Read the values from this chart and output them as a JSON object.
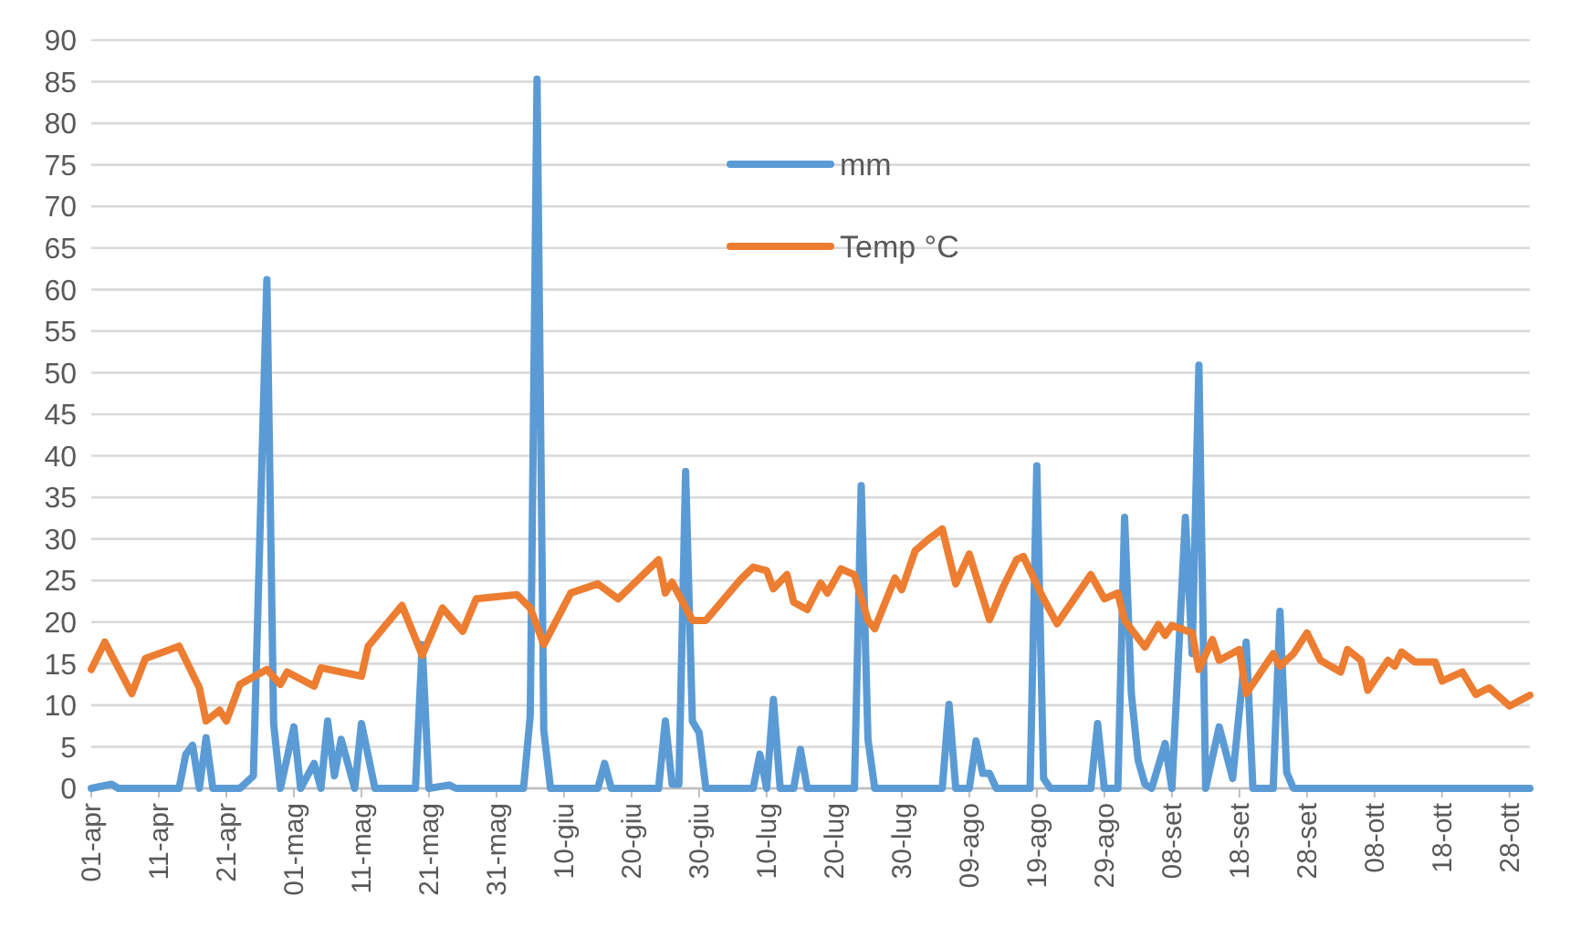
{
  "chart_data": {
    "type": "line",
    "xlim": [
      "--04-01",
      "--10-31"
    ],
    "xticks": [
      {
        "value": "--04-01",
        "label": "01-apr"
      },
      {
        "value": "--04-11",
        "label": "11-apr"
      },
      {
        "value": "--04-21",
        "label": "21-apr"
      },
      {
        "value": "--05-01",
        "label": "01-mag"
      },
      {
        "value": "--05-11",
        "label": "11-mag"
      },
      {
        "value": "--05-21",
        "label": "21-mag"
      },
      {
        "value": "--05-31",
        "label": "31-mag"
      },
      {
        "value": "--06-10",
        "label": "10-giu"
      },
      {
        "value": "--06-20",
        "label": "20-giu"
      },
      {
        "value": "--06-30",
        "label": "30-giu"
      },
      {
        "value": "--07-10",
        "label": "10-lug"
      },
      {
        "value": "--07-20",
        "label": "20-lug"
      },
      {
        "value": "--07-30",
        "label": "30-lug"
      },
      {
        "value": "--08-09",
        "label": "09-ago"
      },
      {
        "value": "--08-19",
        "label": "19-ago"
      },
      {
        "value": "--08-29",
        "label": "29-ago"
      },
      {
        "value": "--09-08",
        "label": "08-set"
      },
      {
        "value": "--09-18",
        "label": "18-set"
      },
      {
        "value": "--09-28",
        "label": "28-set"
      },
      {
        "value": "--10-08",
        "label": "08-ott"
      },
      {
        "value": "--10-18",
        "label": "18-ott"
      },
      {
        "value": "--10-28",
        "label": "28-ott"
      }
    ],
    "ylim": [
      0,
      90
    ],
    "yticks": [
      0,
      5,
      10,
      15,
      20,
      25,
      30,
      35,
      40,
      45,
      50,
      55,
      60,
      65,
      70,
      75,
      80,
      85,
      90
    ],
    "grid": "y",
    "legend": "top",
    "series": [
      {
        "name": "mm",
        "color": "#5b9bd5",
        "x": [
          "--04-01",
          "--04-04",
          "--04-05",
          "--04-14",
          "--04-15",
          "--04-16",
          "--04-17",
          "--04-18",
          "--04-19",
          "--04-23",
          "--04-25",
          "--04-27",
          "--04-28",
          "--04-29",
          "--05-01",
          "--05-02",
          "--05-04",
          "--05-05",
          "--05-06",
          "--05-07",
          "--05-08",
          "--05-10",
          "--05-11",
          "--05-13",
          "--05-19",
          "--05-20",
          "--05-21",
          "--05-24",
          "--05-25",
          "--06-04",
          "--06-05",
          "--06-06",
          "--06-07",
          "--06-08",
          "--06-15",
          "--06-16",
          "--06-17",
          "--06-24",
          "--06-25",
          "--06-26",
          "--06-27",
          "--06-28",
          "--06-29",
          "--06-30",
          "--07-01",
          "--07-08",
          "--07-09",
          "--07-10",
          "--07-11",
          "--07-12",
          "--07-14",
          "--07-15",
          "--07-16",
          "--07-23",
          "--07-24",
          "--07-25",
          "--07-26",
          "--08-05",
          "--08-06",
          "--08-07",
          "--08-09",
          "--08-10",
          "--08-11",
          "--08-12",
          "--08-13",
          "--08-18",
          "--08-19",
          "--08-20",
          "--08-21",
          "--08-27",
          "--08-28",
          "--08-29",
          "--08-31",
          "--09-01",
          "--09-02",
          "--09-03",
          "--09-04",
          "--09-05",
          "--09-07",
          "--09-08",
          "--09-10",
          "--09-11",
          "--09-12",
          "--09-13",
          "--09-15",
          "--09-17",
          "--09-19",
          "--09-20",
          "--09-23",
          "--09-24",
          "--09-25",
          "--09-26",
          "--10-31"
        ],
        "values": [
          0,
          0.5,
          0,
          0,
          4.1,
          5.2,
          0,
          6.1,
          0,
          0,
          1.5,
          61.2,
          7.8,
          0,
          7.4,
          0,
          3,
          0,
          8.1,
          1.5,
          5.9,
          0,
          7.8,
          0,
          0,
          17.3,
          0,
          0.4,
          0,
          0,
          8.8,
          85.3,
          7,
          0,
          0,
          3,
          0,
          0,
          8.1,
          0.5,
          0.5,
          38.1,
          8.1,
          6.7,
          0,
          0,
          4.1,
          0,
          10.7,
          0,
          0,
          4.7,
          0,
          0,
          36.4,
          5.9,
          0,
          0,
          10.1,
          0,
          0,
          5.7,
          1.8,
          1.8,
          0,
          0,
          38.8,
          1.2,
          0,
          0,
          7.8,
          0,
          0,
          32.6,
          11.4,
          3.4,
          0.5,
          0,
          5.4,
          0,
          32.6,
          16.2,
          50.9,
          0,
          7.4,
          1.2,
          17.6,
          0,
          0,
          21.3,
          1.9,
          0,
          0
        ]
      },
      {
        "name": "Temp °C",
        "color": "#ed7d31",
        "x": [
          "--04-01",
          "--04-03",
          "--04-07",
          "--04-09",
          "--04-14",
          "--04-17",
          "--04-18",
          "--04-20",
          "--04-21",
          "--04-23",
          "--04-27",
          "--04-29",
          "--04-30",
          "--05-04",
          "--05-05",
          "--05-11",
          "--05-12",
          "--05-17",
          "--05-20",
          "--05-23",
          "--05-26",
          "--05-28",
          "--06-03",
          "--06-05",
          "--06-07",
          "--06-11",
          "--06-15",
          "--06-18",
          "--06-24",
          "--06-25",
          "--06-26",
          "--06-29",
          "--07-01",
          "--07-06",
          "--07-08",
          "--07-10",
          "--07-11",
          "--07-13",
          "--07-14",
          "--07-16",
          "--07-18",
          "--07-19",
          "--07-21",
          "--07-23",
          "--07-25",
          "--07-26",
          "--07-29",
          "--07-30",
          "--08-01",
          "--08-03",
          "--08-05",
          "--08-07",
          "--08-09",
          "--08-12",
          "--08-14",
          "--08-16",
          "--08-17",
          "--08-20",
          "--08-22",
          "--08-27",
          "--08-29",
          "--08-31",
          "--09-01",
          "--09-04",
          "--09-06",
          "--09-07",
          "--09-08",
          "--09-11",
          "--09-12",
          "--09-14",
          "--09-15",
          "--09-18",
          "--09-19",
          "--09-23",
          "--09-24",
          "--09-26",
          "--09-28",
          "--09-30",
          "--10-03",
          "--10-04",
          "--10-06",
          "--10-07",
          "--10-10",
          "--10-11",
          "--10-12",
          "--10-14",
          "--10-17",
          "--10-18",
          "--10-21",
          "--10-23",
          "--10-25",
          "--10-28",
          "--10-31"
        ],
        "values": [
          14.3,
          17.6,
          11.4,
          15.6,
          17.1,
          12.1,
          8.1,
          9.4,
          8.1,
          12.5,
          14.3,
          12.5,
          14,
          12.3,
          14.5,
          13.5,
          17.1,
          22,
          16,
          21.7,
          18.9,
          22.8,
          23.3,
          21.7,
          17.3,
          23.5,
          24.6,
          22.8,
          27.5,
          23.5,
          24.8,
          20.2,
          20.2,
          25,
          26.6,
          26.2,
          24,
          25.7,
          22.4,
          21.5,
          24.7,
          23.5,
          26.4,
          25.7,
          20.2,
          19.2,
          25.3,
          23.9,
          28.6,
          30,
          31.2,
          24.6,
          28.2,
          20.3,
          24.2,
          27.5,
          27.9,
          22.8,
          19.8,
          25.7,
          22.8,
          23.5,
          20.2,
          17,
          19.7,
          18.4,
          19.6,
          18.7,
          14.3,
          17.9,
          15.4,
          16.7,
          11.4,
          16.2,
          14.7,
          16.2,
          18.7,
          15.4,
          14,
          16.7,
          15.4,
          11.8,
          15.4,
          14.7,
          16.4,
          15.2,
          15.2,
          12.9,
          14,
          11.3,
          12.1,
          9.9,
          11.2
        ]
      }
    ]
  }
}
